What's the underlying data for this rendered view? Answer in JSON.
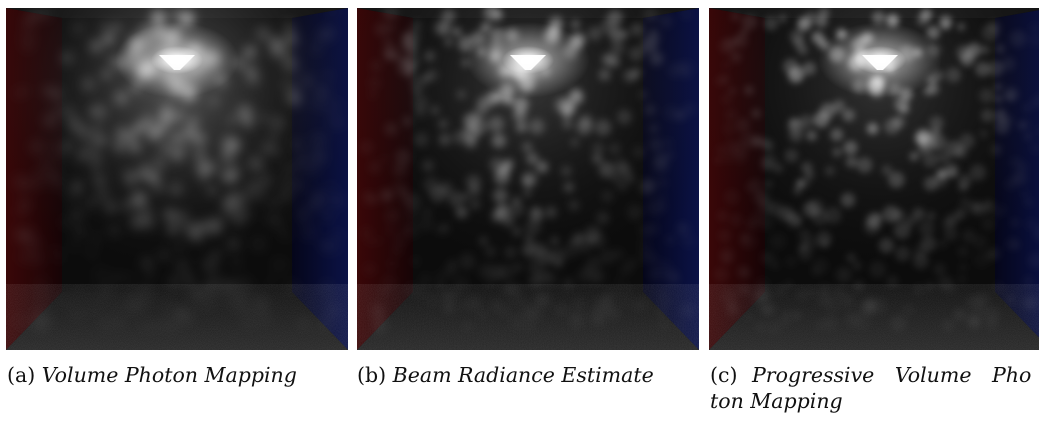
{
  "figure": {
    "panels": [
      {
        "id": "a",
        "label": "(a)",
        "title": "Volume Photon Mapping",
        "seed": 11,
        "style": {
          "haze": 0.95,
          "blur": 5.2,
          "glow": 1.0
        }
      },
      {
        "id": "b",
        "label": "(b)",
        "title": "Beam Radiance Estimate",
        "seed": 23,
        "style": {
          "haze": 0.55,
          "blur": 3.6,
          "glow": 0.95
        }
      },
      {
        "id": "c",
        "label": "(c)",
        "title_line1_words": [
          "Progressive",
          "Volume",
          "Pho"
        ],
        "title_line2": "ton Mapping",
        "seed": 37,
        "style": {
          "haze": 0.5,
          "blur": 3.2,
          "glow": 0.95
        }
      }
    ]
  }
}
